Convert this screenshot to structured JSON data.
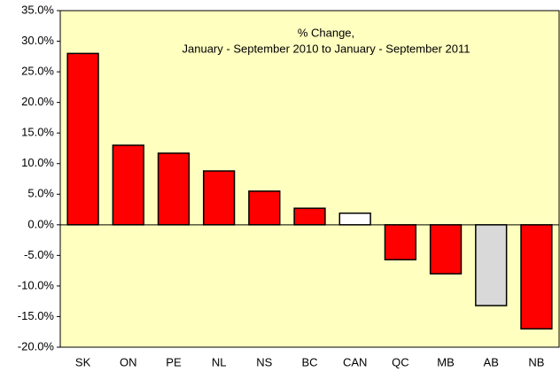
{
  "chart_data": {
    "type": "bar",
    "title": "% Change,",
    "subtitle": "January - September 2010 to January -  September 2011",
    "categories": [
      "SK",
      "ON",
      "PE",
      "NL",
      "NS",
      "BC",
      "CAN",
      "QC",
      "MB",
      "AB",
      "NB"
    ],
    "values": [
      28.0,
      13.0,
      11.7,
      8.8,
      5.5,
      2.7,
      1.9,
      -5.7,
      -8.0,
      -13.2,
      -17.0
    ],
    "colors": [
      "#ff0000",
      "#ff0000",
      "#ff0000",
      "#ff0000",
      "#ff0000",
      "#ff0000",
      "#ffffff",
      "#ff0000",
      "#ff0000",
      "#d9d9d9",
      "#ff0000"
    ],
    "ylim": [
      -20,
      35
    ],
    "yticks": [
      {
        "value": -20,
        "label": "-20.0%"
      },
      {
        "value": -15,
        "label": "-15.0%"
      },
      {
        "value": -10,
        "label": "-10.0%"
      },
      {
        "value": -5,
        "label": "-5.0%"
      },
      {
        "value": 0,
        "label": "0.0%"
      },
      {
        "value": 5,
        "label": "5.0%"
      },
      {
        "value": 10,
        "label": "10.0%"
      },
      {
        "value": 15,
        "label": "15.0%"
      },
      {
        "value": 20,
        "label": "20.0%"
      },
      {
        "value": 25,
        "label": "25.0%"
      },
      {
        "value": 30,
        "label": "30.0%"
      },
      {
        "value": 35,
        "label": "35.0%"
      }
    ],
    "plot_background": "#ffffc0",
    "grid": false
  }
}
